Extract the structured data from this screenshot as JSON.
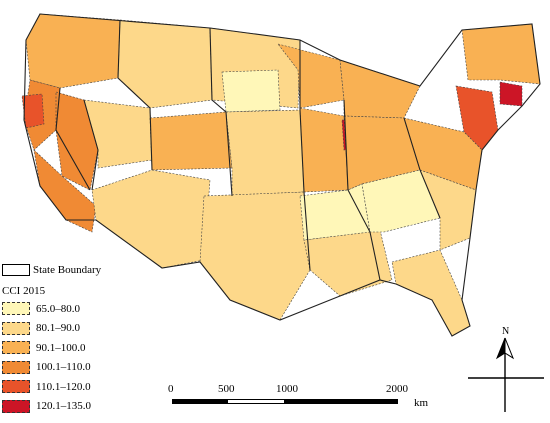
{
  "legend": {
    "boundary_label": "State Boundary",
    "title": "CCI 2015",
    "classes": [
      {
        "label": "65.0–80.0",
        "color": "#fff7b8"
      },
      {
        "label": "80.1–90.0",
        "color": "#fdd88a"
      },
      {
        "label": "90.1–100.0",
        "color": "#f9b153"
      },
      {
        "label": "100.1–110.0",
        "color": "#f08a34"
      },
      {
        "label": "110.1–120.0",
        "color": "#e8532a"
      },
      {
        "label": "120.1–135.0",
        "color": "#cc1526"
      }
    ]
  },
  "scale_bar": {
    "labels": [
      "0",
      "500",
      "1000",
      "2000"
    ],
    "unit": "km"
  },
  "north_arrow": {
    "label": "N"
  },
  "map": {
    "regions": [
      {
        "name": "pacific-northwest",
        "class": 2
      },
      {
        "name": "northern-rockies",
        "class": 1
      },
      {
        "name": "northern-plains",
        "class": 1
      },
      {
        "name": "dakotas-east",
        "class": 0
      },
      {
        "name": "upper-midwest-minnesota",
        "class": 2
      },
      {
        "name": "wisconsin-michigan",
        "class": 2
      },
      {
        "name": "northern-california",
        "class": 3
      },
      {
        "name": "bay-area",
        "class": 4
      },
      {
        "name": "nevada-west",
        "class": 3
      },
      {
        "name": "southern-california",
        "class": 3
      },
      {
        "name": "great-basin",
        "class": 1
      },
      {
        "name": "central-colorado",
        "class": 2
      },
      {
        "name": "southwest-desert",
        "class": 1
      },
      {
        "name": "central-plains",
        "class": 1
      },
      {
        "name": "great-lakes-illinois",
        "class": 2
      },
      {
        "name": "chicago",
        "class": 5
      },
      {
        "name": "ohio-valley",
        "class": 2
      },
      {
        "name": "new-york-area",
        "class": 4
      },
      {
        "name": "boston-area",
        "class": 5
      },
      {
        "name": "northeast",
        "class": 2
      },
      {
        "name": "mid-atlantic",
        "class": 2
      },
      {
        "name": "texas",
        "class": 1
      },
      {
        "name": "gulf-coast",
        "class": 1
      },
      {
        "name": "mississippi-arkansas",
        "class": 0
      },
      {
        "name": "southeast-piedmont",
        "class": 0
      },
      {
        "name": "georgia-carolinas",
        "class": 1
      },
      {
        "name": "florida",
        "class": 1
      }
    ]
  }
}
